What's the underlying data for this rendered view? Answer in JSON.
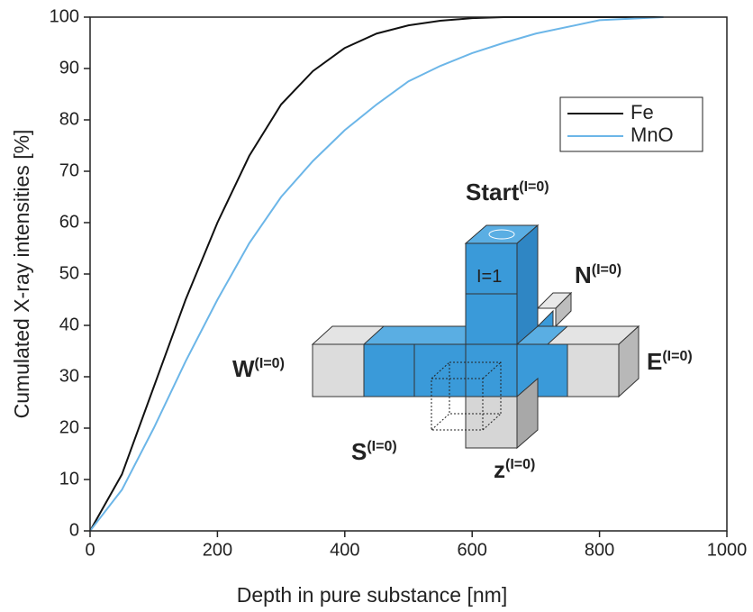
{
  "chart_data": {
    "type": "line",
    "xlabel": "Depth in pure substance [nm]",
    "ylabel": "Cumulated X-ray intensities [%]",
    "x": [
      0,
      50,
      100,
      150,
      200,
      250,
      300,
      350,
      400,
      450,
      500,
      550,
      600,
      650,
      700,
      800,
      900
    ],
    "series": [
      {
        "name": "Fe",
        "color": "#111111",
        "values": [
          0,
          11,
          28,
          45,
          60,
          73,
          83,
          89.5,
          94,
          96.8,
          98.4,
          99.3,
          99.8,
          100,
          100,
          100,
          100
        ]
      },
      {
        "name": "MnO",
        "color": "#6cb6e8",
        "values": [
          0,
          8,
          20,
          33,
          45,
          56,
          65,
          72,
          78,
          83,
          87.5,
          90.5,
          93,
          95,
          96.8,
          99.4,
          100
        ]
      }
    ],
    "xlim": [
      0,
      1000
    ],
    "xticks": [
      0,
      200,
      400,
      600,
      800,
      1000
    ],
    "ylim": [
      0,
      100
    ],
    "yticks": [
      0,
      10,
      20,
      30,
      40,
      50,
      60,
      70,
      80,
      90,
      100
    ],
    "legend": "upper right",
    "annotations": [
      {
        "text": "Start",
        "superscript": "(I=0)"
      },
      {
        "text": "N",
        "superscript": "(I=0)"
      },
      {
        "text": "W",
        "superscript": "(I=0)"
      },
      {
        "text": "E",
        "superscript": "(I=0)"
      },
      {
        "text": "S",
        "superscript": "(I=0)"
      },
      {
        "text": "z",
        "superscript": "(I=0)"
      },
      {
        "text": "I=1"
      }
    ]
  }
}
